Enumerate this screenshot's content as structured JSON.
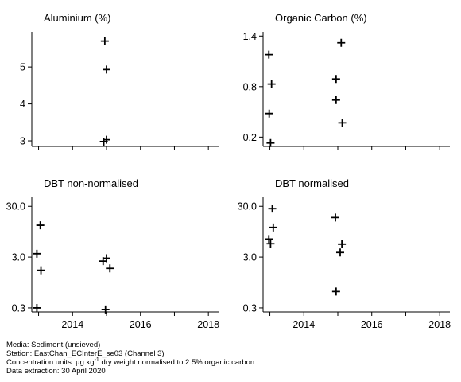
{
  "chart_data": [
    {
      "type": "scatter",
      "title": "Aluminium (%)",
      "xlim": [
        2012.8,
        2018.3
      ],
      "ylim": [
        2.85,
        5.95
      ],
      "yscale": "linear",
      "yticks": [
        3,
        4,
        5
      ],
      "yticklabels": [
        "3",
        "4",
        "5"
      ],
      "xticks": [
        2014,
        2016,
        2018
      ],
      "xticklabels": [],
      "marker": "+",
      "points": [
        [
          2014.95,
          5.7
        ],
        [
          2015.0,
          4.93
        ],
        [
          2014.92,
          2.98
        ],
        [
          2015.0,
          3.03
        ]
      ]
    },
    {
      "type": "scatter",
      "title": "Organic Carbon (%)",
      "xlim": [
        2012.8,
        2018.3
      ],
      "ylim": [
        0.09,
        1.45
      ],
      "yscale": "linear",
      "yticks": [
        0.2,
        0.8,
        1.4
      ],
      "yticklabels": [
        "0.2",
        "0.8",
        "1.4"
      ],
      "xticks": [
        2014,
        2016,
        2018
      ],
      "xticklabels": [],
      "marker": "+",
      "points": [
        [
          2012.97,
          1.18
        ],
        [
          2013.05,
          0.83
        ],
        [
          2012.98,
          0.48
        ],
        [
          2013.02,
          0.13
        ],
        [
          2015.1,
          1.32
        ],
        [
          2014.95,
          0.89
        ],
        [
          2014.95,
          0.64
        ],
        [
          2015.13,
          0.37
        ]
      ]
    },
    {
      "type": "scatter",
      "title": "DBT non-normalised",
      "xlim": [
        2012.8,
        2018.3
      ],
      "ylim": [
        0.25,
        45
      ],
      "yscale": "log",
      "yticks": [
        0.3,
        3.0,
        30.0
      ],
      "yticklabels": [
        "0.3",
        "3.0",
        "30.0"
      ],
      "xticks": [
        2014,
        2016,
        2018
      ],
      "xticklabels": [
        "2014",
        "2016",
        "2018"
      ],
      "marker": "+",
      "points": [
        [
          2013.05,
          12.7
        ],
        [
          2012.95,
          3.5
        ],
        [
          2013.07,
          1.65
        ],
        [
          2012.95,
          0.3
        ],
        [
          2014.9,
          2.5
        ],
        [
          2015.0,
          2.85
        ],
        [
          2015.1,
          1.8
        ],
        [
          2014.97,
          0.28
        ]
      ]
    },
    {
      "type": "scatter",
      "title": "DBT normalised",
      "xlim": [
        2012.8,
        2018.3
      ],
      "ylim": [
        0.25,
        45
      ],
      "yscale": "log",
      "yticks": [
        0.3,
        3.0,
        30.0
      ],
      "yticklabels": [
        "0.3",
        "3.0",
        "30.0"
      ],
      "xticks": [
        2014,
        2016,
        2018
      ],
      "xticklabels": [
        "2014",
        "2016",
        "2018"
      ],
      "marker": "+",
      "points": [
        [
          2013.07,
          27.0
        ],
        [
          2013.1,
          11.5
        ],
        [
          2012.97,
          6.8
        ],
        [
          2013.02,
          5.5
        ],
        [
          2014.93,
          18.0
        ],
        [
          2015.12,
          5.4
        ],
        [
          2015.07,
          3.7
        ],
        [
          2014.95,
          0.63
        ]
      ]
    }
  ],
  "footer": {
    "media": "Media: Sediment (unsieved)",
    "station": "Station: EastChan_ECInterE_se03 (Channel 3)",
    "units_prefix": "Concentration units:  µg kg",
    "units_sup": "-1",
    "units_suffix": " dry weight normalised to 2.5% organic carbon",
    "extraction": "Data extraction: 30 April 2020"
  }
}
